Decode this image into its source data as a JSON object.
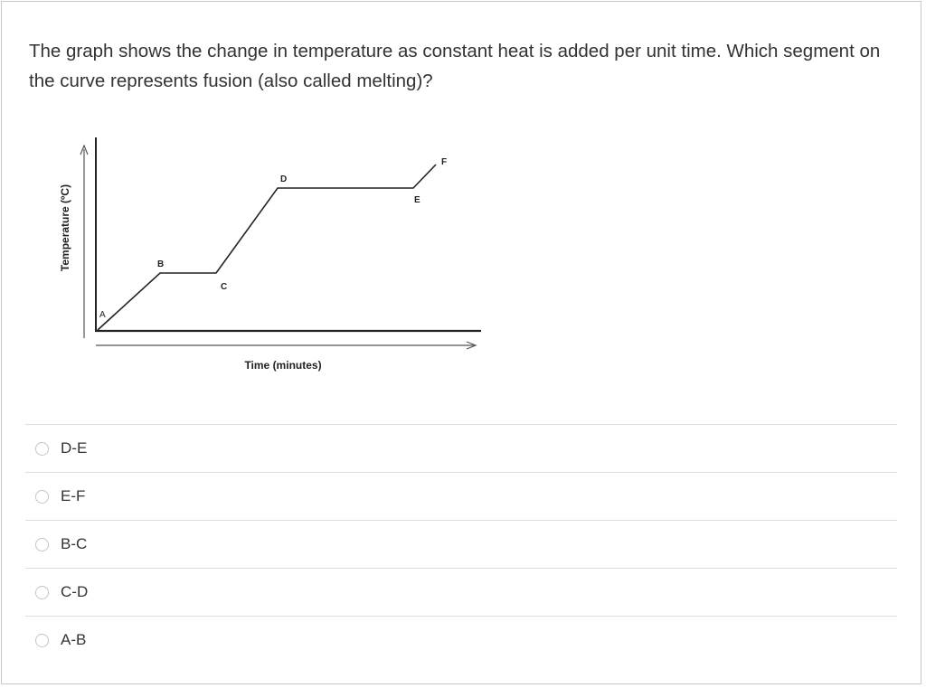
{
  "question": {
    "text": "The graph shows the change in temperature as constant heat is added per unit time.  Which segment on the curve represents fusion (also called melting)?"
  },
  "chart_data": {
    "type": "line",
    "xlabel": "Time (minutes)",
    "ylabel": "Temperature (ºC)",
    "points": [
      {
        "label": "A"
      },
      {
        "label": "B"
      },
      {
        "label": "C"
      },
      {
        "label": "D"
      },
      {
        "label": "E"
      },
      {
        "label": "F"
      }
    ]
  },
  "options": [
    {
      "label": "D-E",
      "selected": false
    },
    {
      "label": "E-F",
      "selected": false
    },
    {
      "label": "B-C",
      "selected": false
    },
    {
      "label": "C-D",
      "selected": false
    },
    {
      "label": "A-B",
      "selected": false
    }
  ]
}
